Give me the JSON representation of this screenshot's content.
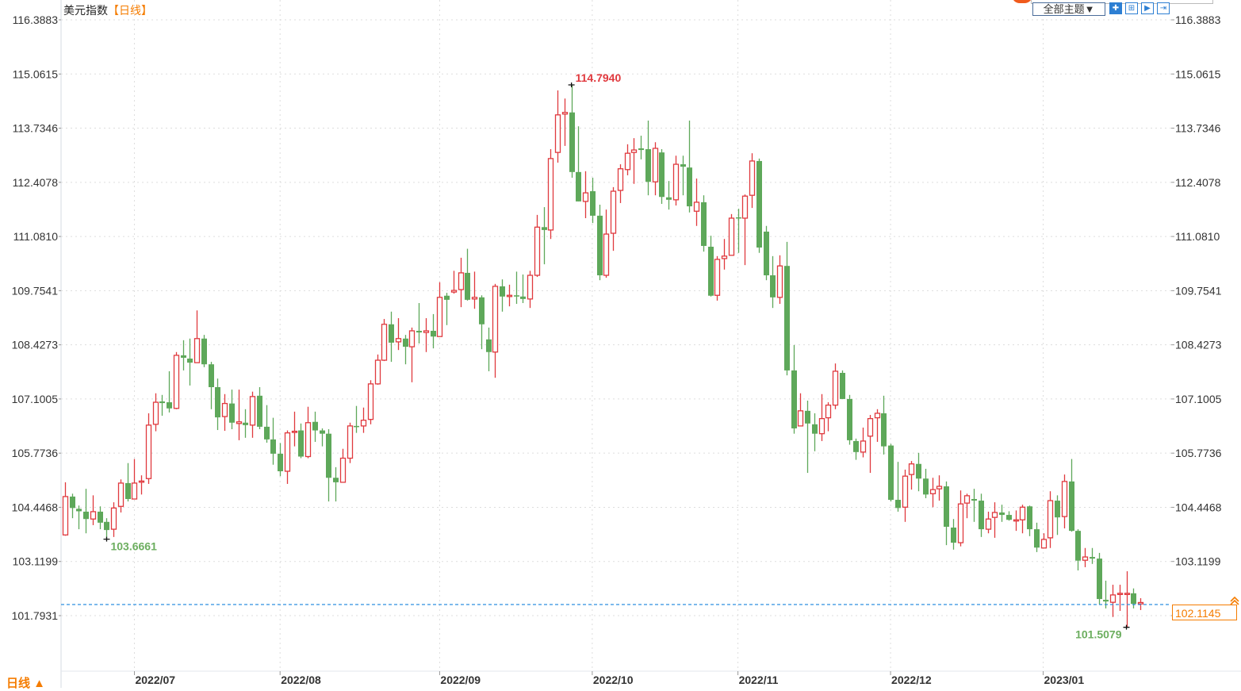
{
  "header": {
    "title": "美元指数",
    "period_tag": "【日线】",
    "theme_select": "全部主题▼",
    "tool_buttons": [
      {
        "icon": "crosshair-icon",
        "active": true
      },
      {
        "icon": "zoom-in-icon",
        "active": false
      },
      {
        "icon": "play-forward-icon",
        "active": false
      },
      {
        "icon": "jump-end-icon",
        "active": false
      }
    ]
  },
  "footer": {
    "period_label": "日线 ▲"
  },
  "colors": {
    "up": "#e0393e",
    "down": "#5ea85a",
    "max_label": "#e0393e",
    "min_label": "#6cae5f",
    "last_price": "#f57c00",
    "last_line": "#2d8fe0",
    "grid": "#dddddd"
  },
  "chart_data": {
    "type": "candlestick",
    "title": "美元指数",
    "period": "日线",
    "ylim": [
      100.42,
      116.3883
    ],
    "grid": true,
    "y_ticks": [
      "116.3883",
      "115.0615",
      "113.7346",
      "112.4078",
      "111.0810",
      "109.7541",
      "108.4273",
      "107.1005",
      "105.7736",
      "104.4468",
      "103.1199",
      "101.7931"
    ],
    "x_ticks": [
      {
        "label": "2022/07",
        "index": 10
      },
      {
        "label": "2022/08",
        "index": 31
      },
      {
        "label": "2022/09",
        "index": 54
      },
      {
        "label": "2022/10",
        "index": 76
      },
      {
        "label": "2022/11",
        "index": 97
      },
      {
        "label": "2022/12",
        "index": 119
      },
      {
        "label": "2023/01",
        "index": 141
      }
    ],
    "annotations": {
      "max": {
        "label": "114.7940",
        "value": 114.794,
        "index": 73
      },
      "min_left": {
        "label": "103.6661",
        "value": 103.6661,
        "index": 6
      },
      "min": {
        "label": "101.5079",
        "value": 101.5079,
        "index": 153
      },
      "last": {
        "label": "102.1145",
        "value": 102.1145
      }
    },
    "fields": [
      "open",
      "close",
      "high",
      "low"
    ],
    "ohlc": [
      [
        103.77,
        104.71,
        105.06,
        103.75
      ],
      [
        104.71,
        104.43,
        104.78,
        104.18
      ],
      [
        104.41,
        104.35,
        104.49,
        103.91
      ],
      [
        104.34,
        104.16,
        104.9,
        103.81
      ],
      [
        104.16,
        104.34,
        104.74,
        104.01
      ],
      [
        104.34,
        104.07,
        104.47,
        103.91
      ],
      [
        104.09,
        103.89,
        104.18,
        103.6661
      ],
      [
        103.91,
        104.43,
        104.57,
        103.72
      ],
      [
        104.47,
        105.04,
        105.13,
        104.32
      ],
      [
        105.04,
        104.65,
        105.53,
        104.59
      ],
      [
        104.65,
        105.04,
        105.63,
        104.65
      ],
      [
        105.07,
        105.09,
        105.23,
        104.76
      ],
      [
        105.15,
        106.46,
        106.75,
        105.02
      ],
      [
        106.48,
        107.02,
        107.24,
        106.31
      ],
      [
        107.04,
        107.0,
        107.2,
        106.69
      ],
      [
        107.02,
        106.87,
        107.78,
        106.77
      ],
      [
        106.87,
        108.17,
        108.25,
        106.85
      ],
      [
        108.17,
        108.11,
        108.54,
        107.8
      ],
      [
        108.09,
        107.99,
        108.58,
        107.43
      ],
      [
        107.99,
        108.58,
        109.27,
        107.99
      ],
      [
        108.58,
        107.95,
        108.67,
        107.88
      ],
      [
        107.95,
        107.39,
        108.01,
        106.85
      ],
      [
        107.39,
        106.65,
        107.6,
        106.34
      ],
      [
        106.67,
        106.99,
        107.22,
        106.32
      ],
      [
        106.99,
        106.52,
        107.33,
        106.36
      ],
      [
        106.5,
        106.54,
        107.33,
        106.09
      ],
      [
        106.52,
        106.46,
        106.85,
        106.15
      ],
      [
        106.46,
        107.16,
        107.28,
        106.15
      ],
      [
        107.18,
        106.42,
        107.39,
        106.36
      ],
      [
        106.42,
        106.11,
        106.95,
        106.03
      ],
      [
        106.11,
        105.76,
        106.64,
        105.49
      ],
      [
        105.76,
        105.33,
        106.02,
        105.21
      ],
      [
        105.33,
        106.27,
        106.33,
        105.02
      ],
      [
        106.29,
        106.31,
        106.79,
        105.94
      ],
      [
        106.33,
        105.69,
        106.5,
        105.65
      ],
      [
        105.69,
        106.52,
        106.91,
        105.65
      ],
      [
        106.54,
        106.33,
        106.79,
        106.05
      ],
      [
        106.33,
        106.25,
        106.38,
        105.94
      ],
      [
        106.25,
        105.17,
        106.36,
        104.59
      ],
      [
        105.17,
        105.06,
        105.43,
        104.59
      ],
      [
        105.06,
        105.65,
        105.88,
        105.06
      ],
      [
        105.65,
        106.44,
        106.52,
        105.53
      ],
      [
        106.44,
        106.42,
        106.93,
        106.27
      ],
      [
        106.44,
        106.58,
        106.89,
        106.27
      ],
      [
        106.6,
        107.47,
        107.56,
        106.48
      ],
      [
        107.47,
        108.05,
        108.19,
        107.45
      ],
      [
        108.05,
        108.93,
        109.06,
        108.03
      ],
      [
        108.93,
        108.48,
        109.24,
        108.01
      ],
      [
        108.5,
        108.58,
        109.08,
        108.3
      ],
      [
        108.58,
        108.38,
        108.67,
        107.95
      ],
      [
        108.38,
        108.77,
        108.85,
        107.51
      ],
      [
        108.77,
        108.73,
        109.45,
        108.46
      ],
      [
        108.73,
        108.77,
        109.08,
        108.25
      ],
      [
        108.77,
        108.63,
        109.18,
        108.34
      ],
      [
        108.63,
        109.59,
        109.96,
        108.63
      ],
      [
        109.63,
        109.53,
        109.7,
        108.91
      ],
      [
        109.72,
        109.76,
        110.24,
        109.68
      ],
      [
        109.78,
        110.19,
        110.56,
        109.35
      ],
      [
        110.19,
        109.53,
        110.78,
        109.51
      ],
      [
        109.55,
        109.59,
        110.22,
        109.31
      ],
      [
        109.59,
        108.93,
        109.64,
        108.32
      ],
      [
        108.56,
        108.25,
        108.85,
        107.78
      ],
      [
        108.25,
        109.86,
        109.92,
        107.62
      ],
      [
        109.86,
        109.61,
        110.03,
        109.24
      ],
      [
        109.61,
        109.64,
        109.9,
        109.37
      ],
      [
        109.64,
        109.61,
        110.22,
        109.43
      ],
      [
        109.61,
        109.55,
        110.15,
        109.45
      ],
      [
        109.55,
        110.13,
        110.24,
        109.33
      ],
      [
        110.13,
        111.31,
        111.61,
        110.09
      ],
      [
        111.31,
        111.24,
        111.8,
        110.4
      ],
      [
        111.24,
        112.99,
        113.22,
        111.02
      ],
      [
        113.14,
        114.06,
        114.66,
        112.89
      ],
      [
        114.08,
        114.12,
        114.46,
        113.3
      ],
      [
        114.12,
        112.66,
        114.794,
        112.52
      ],
      [
        112.66,
        111.94,
        113.78,
        111.94
      ],
      [
        111.94,
        112.15,
        112.68,
        111.53
      ],
      [
        112.19,
        111.59,
        112.52,
        111.41
      ],
      [
        111.59,
        110.13,
        111.86,
        110.01
      ],
      [
        110.13,
        111.14,
        111.74,
        110.07
      ],
      [
        111.16,
        112.19,
        112.29,
        110.73
      ],
      [
        112.21,
        112.74,
        112.85,
        111.9
      ],
      [
        112.72,
        113.12,
        113.34,
        112.58
      ],
      [
        113.14,
        113.2,
        113.49,
        112.37
      ],
      [
        113.24,
        113.2,
        113.55,
        112.97
      ],
      [
        113.22,
        112.42,
        113.92,
        112.09
      ],
      [
        112.42,
        113.24,
        113.39,
        112.09
      ],
      [
        113.14,
        112.05,
        113.22,
        111.88
      ],
      [
        112.04,
        111.98,
        112.44,
        111.74
      ],
      [
        111.98,
        112.85,
        113.06,
        111.84
      ],
      [
        112.85,
        112.79,
        113.06,
        112.09
      ],
      [
        112.77,
        111.82,
        113.92,
        111.67
      ],
      [
        111.7,
        111.92,
        112.5,
        111.34
      ],
      [
        111.92,
        110.85,
        112.09,
        110.71
      ],
      [
        110.83,
        109.63,
        111.1,
        109.61
      ],
      [
        109.64,
        110.52,
        110.6,
        109.51
      ],
      [
        110.54,
        110.6,
        111.02,
        110.27
      ],
      [
        110.62,
        111.53,
        111.63,
        110.62
      ],
      [
        111.55,
        111.53,
        111.76,
        110.68
      ],
      [
        111.53,
        112.07,
        112.11,
        110.38
      ],
      [
        112.09,
        112.93,
        113.12,
        111.78
      ],
      [
        112.93,
        110.81,
        112.99,
        110.68
      ],
      [
        111.2,
        110.13,
        111.34,
        110.01
      ],
      [
        110.13,
        109.59,
        110.6,
        109.33
      ],
      [
        109.59,
        110.36,
        110.62,
        109.43
      ],
      [
        110.36,
        107.8,
        110.95,
        107.68
      ],
      [
        107.8,
        106.38,
        108.42,
        106.25
      ],
      [
        106.44,
        106.81,
        107.24,
        106.44
      ],
      [
        106.81,
        106.5,
        107.06,
        105.29
      ],
      [
        106.48,
        106.25,
        106.75,
        105.82
      ],
      [
        106.25,
        106.62,
        107.22,
        106.07
      ],
      [
        106.64,
        106.95,
        107.02,
        106.31
      ],
      [
        106.95,
        107.78,
        107.97,
        106.85
      ],
      [
        107.74,
        107.1,
        107.8,
        107.1
      ],
      [
        107.1,
        106.09,
        107.2,
        105.98
      ],
      [
        106.07,
        105.8,
        106.13,
        105.61
      ],
      [
        105.8,
        106.07,
        106.4,
        105.67
      ],
      [
        106.19,
        106.62,
        106.71,
        105.29
      ],
      [
        106.64,
        106.75,
        106.85,
        106.05
      ],
      [
        106.75,
        105.94,
        107.18,
        105.74
      ],
      [
        105.96,
        104.63,
        106.0,
        104.59
      ],
      [
        104.63,
        104.43,
        105.56,
        104.34
      ],
      [
        104.45,
        105.21,
        105.37,
        104.09
      ],
      [
        105.25,
        105.51,
        105.58,
        104.88
      ],
      [
        105.51,
        105.15,
        105.78,
        104.84
      ],
      [
        105.15,
        104.76,
        105.39,
        104.67
      ],
      [
        104.78,
        104.88,
        105.17,
        104.45
      ],
      [
        104.9,
        104.96,
        105.23,
        104.61
      ],
      [
        104.96,
        103.97,
        105.08,
        103.52
      ],
      [
        103.95,
        103.58,
        104.16,
        103.41
      ],
      [
        103.58,
        104.53,
        104.86,
        103.49
      ],
      [
        104.55,
        104.73,
        104.78,
        104.18
      ],
      [
        104.65,
        104.61,
        104.9,
        104.09
      ],
      [
        104.61,
        103.91,
        104.78,
        103.72
      ],
      [
        103.91,
        104.16,
        104.34,
        103.81
      ],
      [
        104.2,
        104.32,
        104.57,
        103.7
      ],
      [
        104.32,
        104.26,
        104.51,
        104.09
      ],
      [
        104.26,
        104.14,
        104.35,
        104.12
      ],
      [
        104.12,
        104.14,
        104.37,
        103.87
      ],
      [
        104.14,
        104.45,
        104.51,
        103.81
      ],
      [
        104.47,
        103.91,
        104.49,
        103.74
      ],
      [
        103.91,
        103.46,
        104.07,
        103.35
      ],
      [
        103.45,
        103.66,
        103.81,
        103.45
      ],
      [
        103.7,
        104.61,
        104.84,
        103.45
      ],
      [
        104.61,
        104.2,
        104.74,
        103.77
      ],
      [
        104.22,
        105.08,
        105.25,
        103.93
      ],
      [
        105.08,
        103.87,
        105.63,
        103.85
      ],
      [
        103.87,
        103.14,
        103.91,
        102.9
      ],
      [
        103.15,
        103.23,
        103.45,
        102.98
      ],
      [
        103.23,
        103.19,
        103.45,
        103.06
      ],
      [
        103.19,
        102.2,
        103.33,
        102.07
      ],
      [
        102.18,
        102.14,
        102.65,
        101.97
      ],
      [
        102.12,
        102.3,
        102.55,
        101.76
      ],
      [
        102.32,
        102.34,
        102.55,
        101.91
      ],
      [
        102.32,
        102.34,
        102.88,
        101.5079
      ],
      [
        102.34,
        102.08,
        102.46,
        101.97
      ],
      [
        102.08,
        102.1145,
        102.22,
        101.93
      ]
    ]
  }
}
